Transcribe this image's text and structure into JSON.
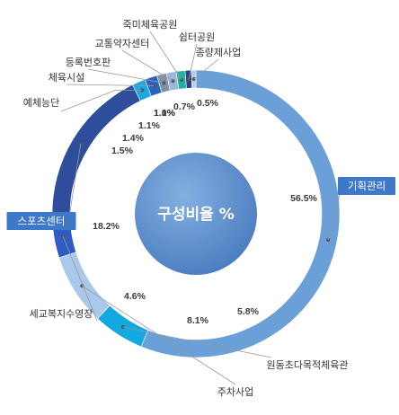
{
  "chart_data": {
    "type": "pie",
    "donut": true,
    "title": "구성비율 %",
    "slices": [
      {
        "label": "기획관리",
        "value": 56.5,
        "display": "56.5%",
        "color": "#6a9fd8",
        "boxed": true
      },
      {
        "label": "원동초다목적체육관",
        "value": 5.8,
        "display": "5.8%",
        "color": "#12a8e0",
        "boxed": false
      },
      {
        "label": "주차사업",
        "value": 8.1,
        "display": "8.1%",
        "color": "#a9c8ea",
        "boxed": false
      },
      {
        "label": "세교복지수영장",
        "value": 4.6,
        "display": "4.6%",
        "color": "#2f5bc4",
        "boxed": false
      },
      {
        "label": "스포츠센터",
        "value": 18.2,
        "display": "18.2%",
        "color": "#2e4d9a",
        "boxed": true
      },
      {
        "label": "예체능단",
        "value": 1.5,
        "display": "1.5%",
        "color": "#1ca7e4",
        "boxed": false
      },
      {
        "label": "체육시설",
        "value": 1.4,
        "display": "1.4%",
        "color": "#2a63c4",
        "boxed": false
      },
      {
        "label": "등록번호판",
        "value": 1.1,
        "display": "1.1%",
        "color": "#7f93a3",
        "boxed": false
      },
      {
        "label": "교통약자센터",
        "value": 1.1,
        "display": "1.1%",
        "color": "#9bb7dc",
        "boxed": false
      },
      {
        "label": "죽미체육공원",
        "value": 1.0,
        "display": "1.0%",
        "color": "#1fb4a2",
        "boxed": false
      },
      {
        "label": "쉼터공원",
        "value": 0.7,
        "display": "0.7%",
        "color": "#2e3f8a",
        "boxed": false
      },
      {
        "label": "종량제사업",
        "value": 0.5,
        "display": "0.5%",
        "color": "#b4ccec",
        "boxed": false
      }
    ],
    "legend": "none"
  },
  "colors": {
    "center_fill": "#5b8ccc",
    "box_fill": "#3e78c8",
    "leader": "#999999",
    "divider": "#ffffff"
  }
}
